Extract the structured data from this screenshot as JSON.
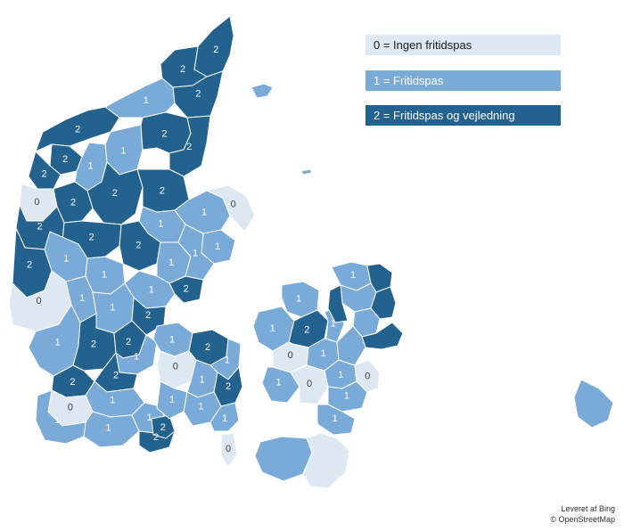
{
  "legend": {
    "items": [
      {
        "label": "0 = Ingen fritidspas",
        "color": "#dde8f3"
      },
      {
        "label": "1 = Fritidspas",
        "color": "#7aaad8"
      },
      {
        "label": "2 = Fritidspas og vejledning",
        "color": "#23618f"
      }
    ]
  },
  "attribution": {
    "line1": "Leveret af Bing",
    "line2": "© OpenStreetMap"
  },
  "map": {
    "region_values": [
      "2",
      "2",
      "2",
      "1",
      "2",
      "2",
      "1",
      "2",
      "2",
      "1",
      "2",
      "0",
      "2",
      "2",
      "2",
      "1",
      "0",
      "1",
      "1",
      "2",
      "2",
      "1",
      "2",
      "2",
      "1",
      "1",
      "2",
      "1",
      "1",
      "0",
      "1",
      "1",
      "2",
      "1",
      "2",
      "2",
      "1",
      "2",
      "2",
      "1",
      "0",
      "1",
      "1",
      "2",
      "2",
      "1",
      "1",
      "2",
      "1",
      "0",
      "1",
      "2",
      "1",
      "1",
      "1",
      "0",
      "1",
      "1",
      "2",
      "1",
      "0",
      "1",
      "1",
      "1",
      "0",
      "1",
      "0",
      "1",
      "1"
    ]
  }
}
